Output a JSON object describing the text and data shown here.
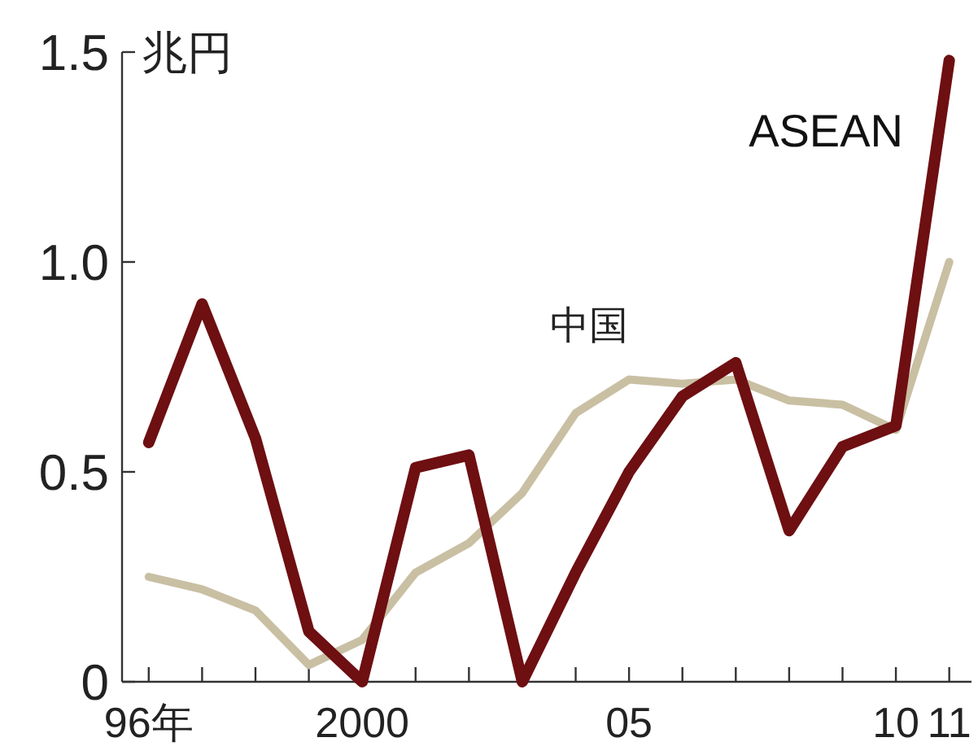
{
  "chart_data": {
    "type": "line",
    "ylabel": "兆円",
    "x": [
      "1996",
      "1997",
      "1998",
      "1999",
      "2000",
      "2001",
      "2002",
      "2003",
      "2004",
      "2005",
      "2006",
      "2007",
      "2008",
      "2009",
      "2010",
      "2011"
    ],
    "series": [
      {
        "name": "ASEAN",
        "color": "#6e0f12",
        "values": [
          0.57,
          0.9,
          0.58,
          0.12,
          0,
          0.51,
          0.54,
          0,
          0.26,
          0.5,
          0.68,
          0.76,
          0.36,
          0.56,
          0.61,
          1.48
        ]
      },
      {
        "name": "中国",
        "color": "#c9bfa3",
        "values": [
          0.25,
          0.22,
          0.17,
          0.04,
          0.1,
          0.26,
          0.33,
          0.45,
          0.64,
          0.72,
          0.71,
          0.72,
          0.67,
          0.66,
          0.6,
          1.0
        ]
      }
    ],
    "xlim": [
      "1995-07",
      "2011-06"
    ],
    "ylim": [
      0,
      1.5
    ],
    "xticks": [
      {
        "value": "1996",
        "label": "96年"
      },
      {
        "value": "1997",
        "label": null
      },
      {
        "value": "1998",
        "label": null
      },
      {
        "value": "1999",
        "label": null
      },
      {
        "value": "2000",
        "label": "2000"
      },
      {
        "value": "2001",
        "label": null
      },
      {
        "value": "2002",
        "label": null
      },
      {
        "value": "2003",
        "label": null
      },
      {
        "value": "2004",
        "label": null
      },
      {
        "value": "2005",
        "label": "05"
      },
      {
        "value": "2006",
        "label": null
      },
      {
        "value": "2007",
        "label": null
      },
      {
        "value": "2008",
        "label": null
      },
      {
        "value": "2009",
        "label": null
      },
      {
        "value": "2010",
        "label": "10"
      },
      {
        "value": "2011",
        "label": "11"
      }
    ],
    "yticks": [
      0,
      {
        "value": 0.5,
        "label": "0.5"
      },
      {
        "value": 1,
        "label": "1.0"
      },
      1.5
    ],
    "grid": false,
    "legend": false,
    "marker": "none",
    "line_style": "solid"
  }
}
